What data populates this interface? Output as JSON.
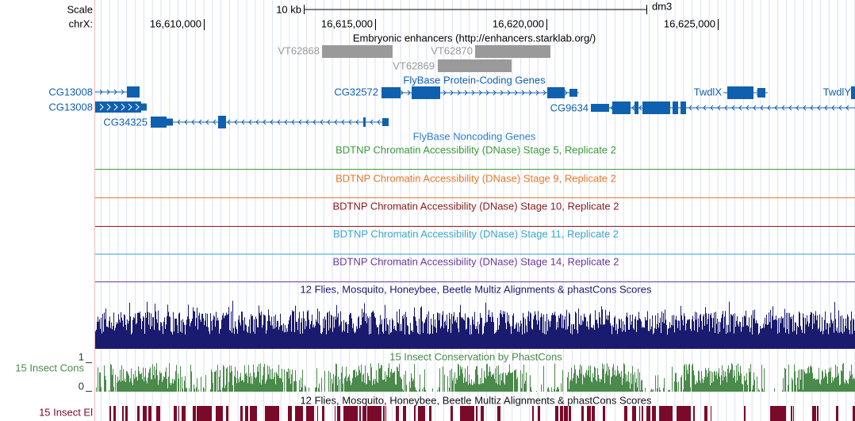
{
  "ruler": {
    "scale_label": "Scale",
    "chrom_label": "chrX:",
    "scale_bar": "10 kb",
    "assembly": "dm3",
    "positions": [
      "16,610,000",
      "16,615,000",
      "16,620,000",
      "16,625,000"
    ]
  },
  "enhancers": {
    "title": "Embryonic enhancers (http://enhancers.starklab.org/)",
    "items": [
      "VT62868",
      "VT62870",
      "VT62869"
    ]
  },
  "genes": {
    "title": "FlyBase Protein-Coding Genes",
    "items": [
      "CG13008",
      "CG13008",
      "CG34325",
      "CG32572",
      "CG9634",
      "TwdlX",
      "TwdlY"
    ]
  },
  "noncoding": {
    "title": "FlyBase Noncoding Genes"
  },
  "dnase": [
    "BDTNP Chromatin Accessibility (DNase) Stage 5, Replicate 2",
    "BDTNP Chromatin Accessibility (DNase) Stage 9, Replicate 2",
    "BDTNP Chromatin Accessibility (DNase) Stage 10, Replicate 2",
    "BDTNP Chromatin Accessibility (DNase) Stage 11, Replicate 2",
    "BDTNP Chromatin Accessibility (DNase) Stage 14, Replicate 2"
  ],
  "multiz": {
    "title": "12 Flies, Mosquito, Honeybee, Beetle Multiz Alignments & phastCons Scores"
  },
  "cons": {
    "label": "15 Insect Cons",
    "title": "15 Insect Conservation by PhastCons",
    "ymax": "1",
    "ymin": "0"
  },
  "elements": {
    "label": "15 Insect El",
    "title": "12 Flies, Mosquito, Honeybee, Beetle Multiz Alignments & phastCons Scores"
  }
}
